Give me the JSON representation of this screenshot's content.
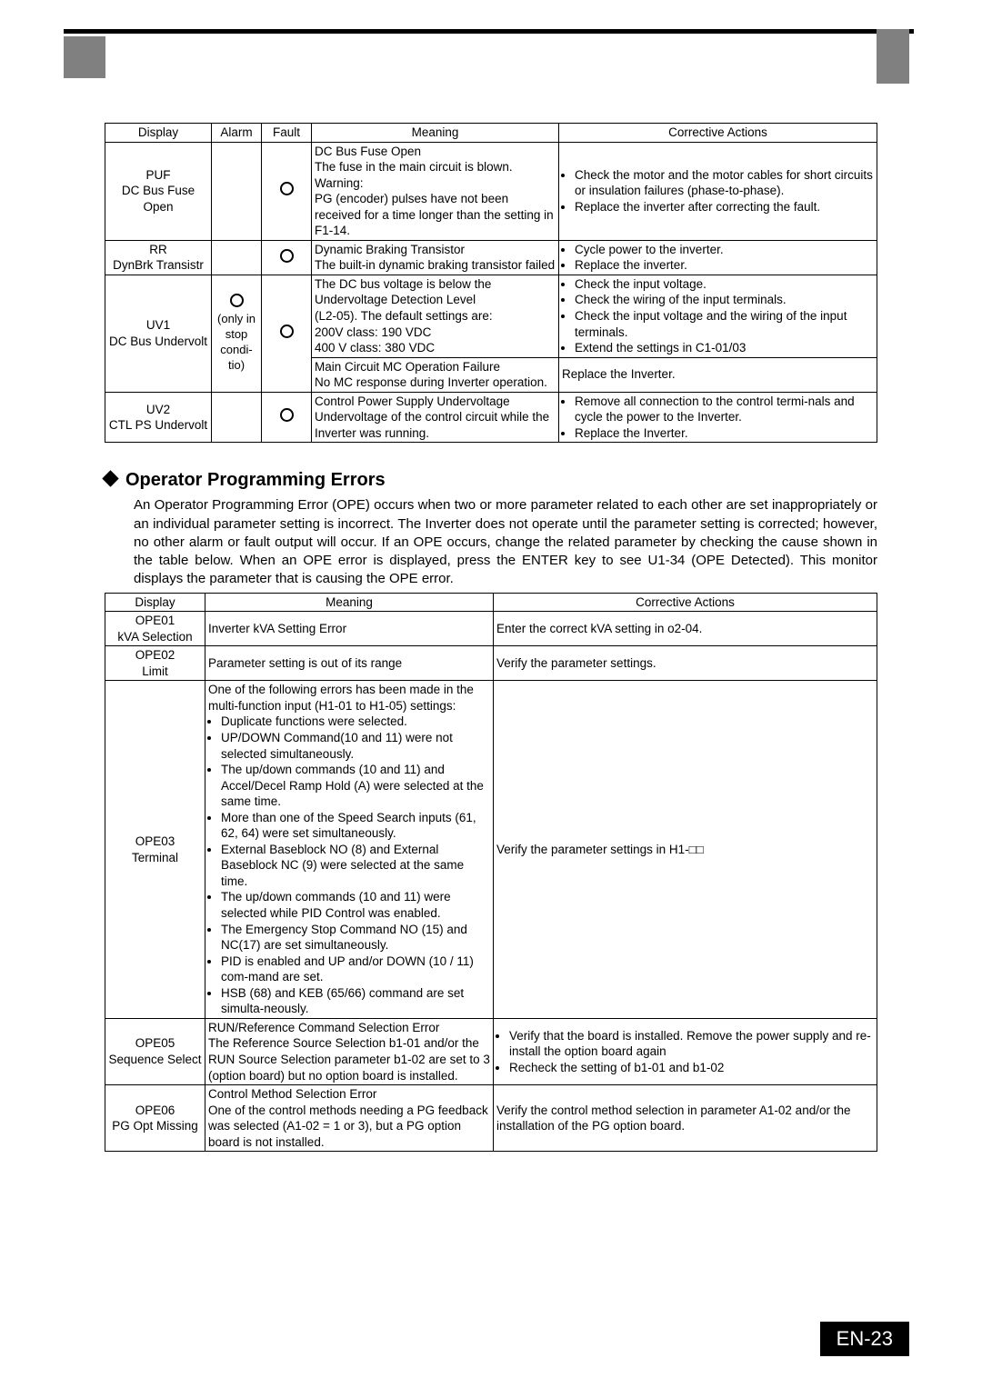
{
  "decoration": {
    "top_bar_color": "#808080",
    "black_bar_color": "#000000"
  },
  "page_number": "EN-23",
  "table1": {
    "headers": {
      "display": "Display",
      "alarm": "Alarm",
      "fault": "Fault",
      "meaning": "Meaning",
      "actions": "Corrective Actions"
    },
    "rows": {
      "puf": {
        "display_line1": "PUF",
        "display_line2": "DC Bus Fuse Open",
        "fault_circle": true,
        "meaning": "DC Bus Fuse Open\nThe fuse in the main circuit is blown.\nWarning:\nPG (encoder) pulses have not been received for a time longer than the setting in F1-14.",
        "actions_items": [
          "Check the motor and the motor cables for short circuits or insulation failures (phase-to-phase).",
          "Replace the inverter after correcting the fault."
        ]
      },
      "rr": {
        "display_line1": "RR",
        "display_line2": "DynBrk Transistr",
        "fault_circle": true,
        "meaning": "Dynamic Braking Transistor\nThe built-in dynamic braking transistor failed",
        "actions_items": [
          "Cycle power to the inverter.",
          "Replace the inverter."
        ]
      },
      "uv1": {
        "display_line1": "UV1",
        "display_line2": "DC Bus Undervolt",
        "alarm_note": "(only in stop condi-tio)",
        "alarm_circle": true,
        "fault_circle": true,
        "meaning1": "The DC bus voltage is below the Undervoltage Detection Level\n(L2-05). The default settings are:\n200V class: 190 VDC\n400 V class: 380 VDC",
        "meaning2": "Main Circuit MC Operation Failure\nNo MC response during Inverter operation.",
        "actions_items": [
          "Check the input voltage.",
          "Check the wiring of the input terminals.",
          "Check the input voltage and the wiring of the input terminals.",
          "Extend the settings in C1-01/03"
        ],
        "actions2": "Replace the Inverter."
      },
      "uv2": {
        "display_line1": "UV2",
        "display_line2": "CTL PS Undervolt",
        "fault_circle": true,
        "meaning": "Control Power Supply Undervoltage\nUndervoltage of the control circuit while the Inverter was running.",
        "actions_items": [
          "Remove all connection to the control termi-nals and cycle the power to the Inverter.",
          "Replace the Inverter."
        ]
      }
    }
  },
  "section": {
    "heading": "Operator Programming Errors",
    "paragraph": "An Operator Programming Error (OPE) occurs when two or more parameter related to each other are set inappropriately or an individual parameter setting is incorrect. The Inverter does not operate until the parameter setting is corrected; however, no other alarm or fault output will occur. If an OPE occurs, change the related parameter by checking the cause shown in the table below. When an OPE error is displayed, press the ENTER key to see U1-34 (OPE Detected). This monitor displays the parameter that is causing the OPE error."
  },
  "table2": {
    "headers": {
      "display": "Display",
      "meaning": "Meaning",
      "actions": "Corrective Actions"
    },
    "rows": {
      "ope01": {
        "display_line1": "OPE01",
        "display_line2": "kVA Selection",
        "meaning": "Inverter kVA Setting Error",
        "actions": "Enter the correct kVA setting in o2-04."
      },
      "ope02": {
        "display_line1": "OPE02",
        "display_line2": "Limit",
        "meaning": "Parameter setting is out of its range",
        "actions": "Verify the parameter settings."
      },
      "ope03": {
        "display_line1": "OPE03",
        "display_line2": "Terminal",
        "meaning_intro": "One of the following errors has been made in the multi-function input (H1-01 to H1-05) settings:",
        "meaning_items": [
          "Duplicate functions were selected.",
          "UP/DOWN Command(10 and 11) were not selected simultaneously.",
          "The up/down commands (10 and 11) and Accel/Decel Ramp Hold (A) were selected at the same time.",
          "More than one of the Speed Search inputs (61, 62, 64) were set simultaneously.",
          "External Baseblock NO (8) and External Baseblock NC (9) were selected at the same time.",
          "The up/down commands (10 and 11) were selected while PID Control was enabled.",
          "The Emergency Stop Command NO (15) and NC(17) are set simultaneously.",
          "PID is enabled and UP and/or DOWN (10 / 11) com-mand are set.",
          "HSB (68) and KEB (65/66) command are set simulta-neously."
        ],
        "actions": "Verify the parameter settings in H1-□□"
      },
      "ope05": {
        "display_line1": "OPE05",
        "display_line2": "Sequence Select",
        "meaning": "RUN/Reference Command Selection Error\nThe Reference Source Selection b1-01 and/or the RUN Source Selection parameter b1-02 are set to 3 (option board) but no option board is installed.",
        "actions_items": [
          "Verify that the board is installed. Remove the power supply and re-install the option board again",
          "Recheck the setting of b1-01 and b1-02"
        ]
      },
      "ope06": {
        "display_line1": "OPE06",
        "display_line2": "PG Opt Missing",
        "meaning": "Control Method Selection Error\nOne of the control methods needing a PG feedback was selected (A1-02 = 1 or 3), but a PG option board is not installed.",
        "actions": "Verify the control method selection in parameter A1-02 and/or the installation of the PG option board."
      }
    }
  }
}
